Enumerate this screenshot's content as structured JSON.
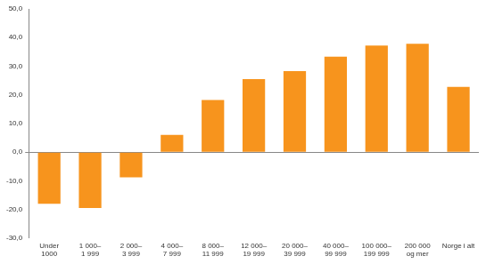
{
  "chart_data": {
    "type": "bar",
    "categories": [
      "Under\n1000",
      "1 000–\n1 999",
      "2 000–\n3 999",
      "4 000–\n7 999",
      "8 000–\n11 999",
      "12 000–\n19 999",
      "20 000–\n39 999",
      "40 000–\n99 999",
      "100 000–\n199 999",
      "200 000\nog mer",
      "Norge i alt"
    ],
    "values": [
      -18.0,
      -19.5,
      -8.8,
      6.0,
      18.2,
      25.5,
      28.3,
      33.3,
      37.2,
      37.8,
      22.8
    ],
    "color": "#f7941d",
    "ylim": [
      -30,
      50
    ],
    "yticks": [
      {
        "value": -30,
        "label": "-30,0"
      },
      {
        "value": -20,
        "label": "-20,0"
      },
      {
        "value": -10,
        "label": "-10,0"
      },
      {
        "value": 0,
        "label": "0,0"
      },
      {
        "value": 10,
        "label": "10,0"
      },
      {
        "value": 20,
        "label": "20,0"
      },
      {
        "value": 30,
        "label": "30,0"
      },
      {
        "value": 40,
        "label": "40,0"
      },
      {
        "value": 50,
        "label": "50,0"
      }
    ],
    "grid": false
  }
}
